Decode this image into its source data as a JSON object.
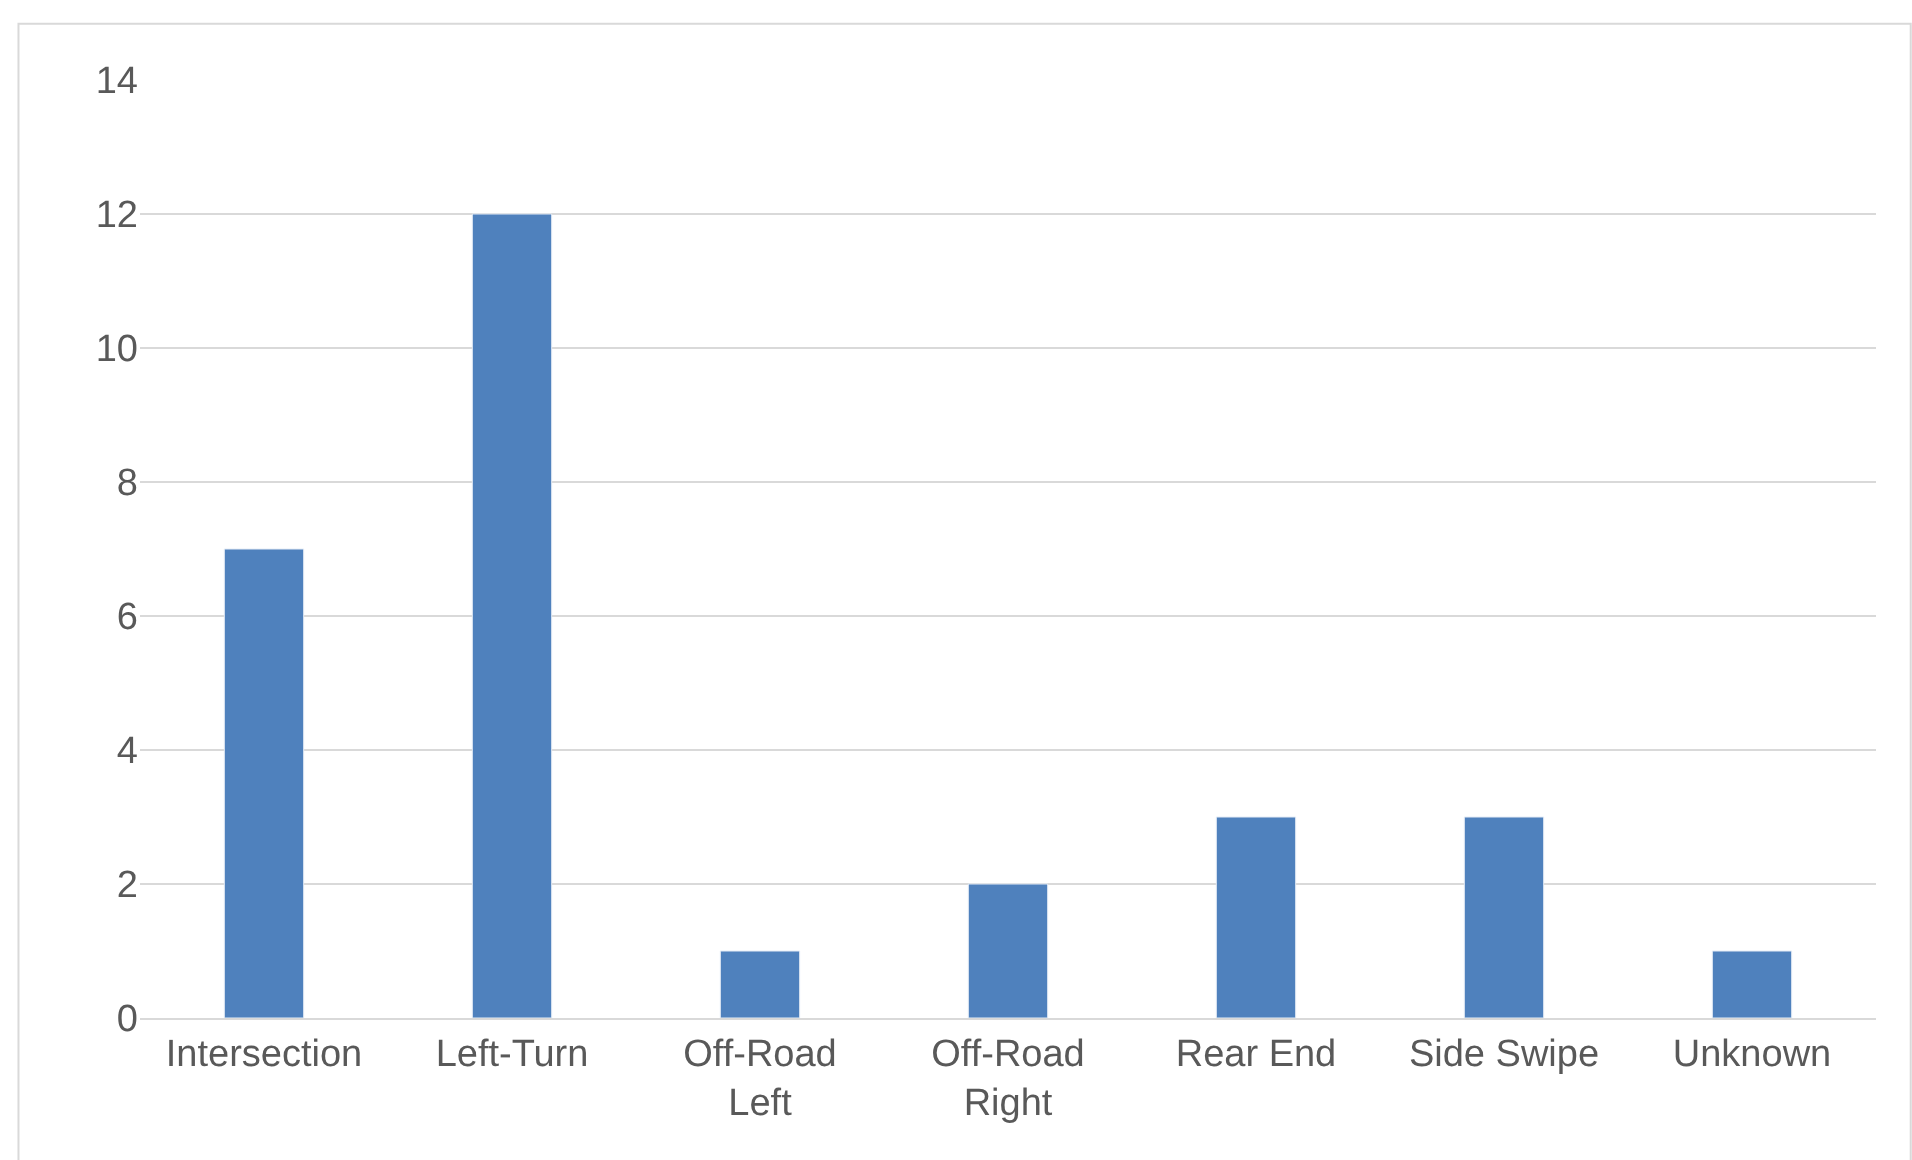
{
  "chart_data": {
    "type": "bar",
    "categories": [
      "Intersection",
      "Left-Turn",
      "Off-Road Left",
      "Off-Road Right",
      "Rear End",
      "Side Swipe",
      "Unknown"
    ],
    "values": [
      7,
      12,
      1,
      2,
      3,
      3,
      1
    ],
    "color": "#4f81bd",
    "ylim": [
      0,
      14
    ],
    "yticks": [
      0,
      2,
      4,
      6,
      8,
      10,
      12,
      14
    ],
    "grid": "y"
  }
}
